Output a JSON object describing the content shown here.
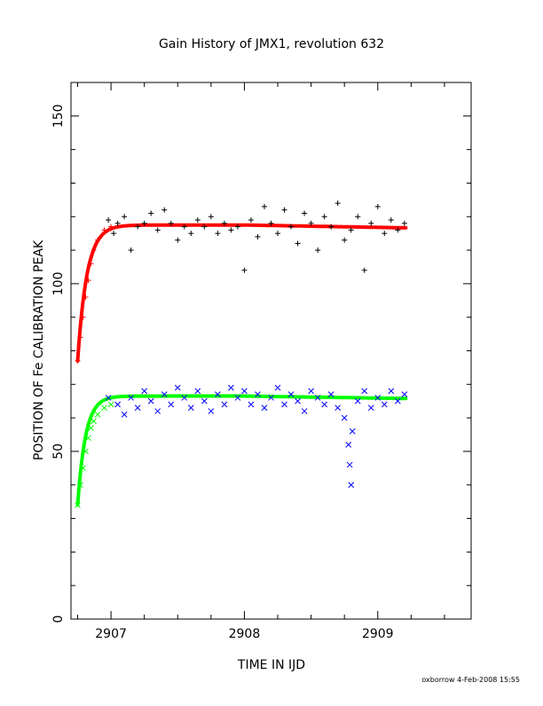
{
  "chart_data": {
    "type": "scatter",
    "title": "Gain History of JMX1, revolution 632",
    "xlabel": "TIME IN IJD",
    "ylabel": "POSITION OF Fe CALIBRATION PEAK",
    "xlim": [
      2906.7,
      2909.7
    ],
    "ylim": [
      0,
      160
    ],
    "x_ticks": [
      2907,
      2908,
      2909
    ],
    "y_ticks": [
      0,
      50,
      100,
      150
    ],
    "x_tick_labels": [
      "2907",
      "2908",
      "2909"
    ],
    "y_tick_labels": [
      "0",
      "50",
      "100",
      "150"
    ],
    "grid": false,
    "series": [
      {
        "marker": "plus",
        "color": "#000000",
        "x": [
          2906.98,
          2907.02,
          2907.05,
          2907.1,
          2907.15,
          2907.2,
          2907.25,
          2907.3,
          2907.35,
          2907.4,
          2907.45,
          2907.5,
          2907.55,
          2907.6,
          2907.65,
          2907.7,
          2907.75,
          2907.8,
          2907.85,
          2907.9,
          2907.95,
          2908.0,
          2908.05,
          2908.1,
          2908.15,
          2908.2,
          2908.25,
          2908.3,
          2908.35,
          2908.4,
          2908.45,
          2908.5,
          2908.55,
          2908.6,
          2908.65,
          2908.7,
          2908.75,
          2908.8,
          2908.85,
          2908.9,
          2908.95,
          2909.0,
          2909.05,
          2909.1,
          2909.15,
          2909.2
        ],
        "y": [
          119,
          115,
          118,
          120,
          110,
          117,
          118,
          121,
          116,
          122,
          118,
          113,
          117,
          115,
          119,
          117,
          120,
          115,
          118,
          116,
          117,
          104,
          119,
          114,
          123,
          118,
          115,
          122,
          117,
          112,
          121,
          118,
          110,
          120,
          117,
          124,
          113,
          116,
          120,
          104,
          118,
          123,
          115,
          119,
          116,
          118
        ]
      },
      {
        "marker": "plus",
        "color": "#ff0000",
        "x": [
          2906.75,
          2906.77,
          2906.79,
          2906.81,
          2906.83,
          2906.85,
          2906.87,
          2906.9,
          2906.95,
          2907.0
        ],
        "y": [
          77,
          84,
          90,
          96,
          101,
          106,
          110,
          113,
          116,
          117
        ]
      },
      {
        "marker": "cross",
        "color": "#0000ff",
        "x": [
          2906.98,
          2907.05,
          2907.1,
          2907.15,
          2907.2,
          2907.25,
          2907.3,
          2907.35,
          2907.4,
          2907.45,
          2907.5,
          2907.55,
          2907.6,
          2907.65,
          2907.7,
          2907.75,
          2907.8,
          2907.85,
          2907.9,
          2907.95,
          2908.0,
          2908.05,
          2908.1,
          2908.15,
          2908.2,
          2908.25,
          2908.3,
          2908.35,
          2908.4,
          2908.45,
          2908.5,
          2908.55,
          2908.6,
          2908.65,
          2908.7,
          2908.75,
          2908.78,
          2908.79,
          2908.8,
          2908.81,
          2908.85,
          2908.9,
          2908.95,
          2909.0,
          2909.05,
          2909.1,
          2909.15,
          2909.2
        ],
        "y": [
          66,
          64,
          61,
          66,
          63,
          68,
          65,
          62,
          67,
          64,
          69,
          66,
          63,
          68,
          65,
          62,
          67,
          64,
          69,
          66,
          68,
          64,
          67,
          63,
          66,
          69,
          64,
          67,
          65,
          62,
          68,
          66,
          64,
          67,
          63,
          60,
          52,
          46,
          40,
          56,
          65,
          68,
          63,
          66,
          64,
          68,
          65,
          67
        ]
      },
      {
        "marker": "cross",
        "color": "#00ff00",
        "x": [
          2906.75,
          2906.77,
          2906.79,
          2906.81,
          2906.83,
          2906.85,
          2906.87,
          2906.9,
          2906.95,
          2907.0
        ],
        "y": [
          34,
          40,
          45,
          50,
          54,
          57,
          59,
          61,
          63,
          64
        ]
      }
    ]
  },
  "footer": {
    "stamp": "oxborrow   4-Feb-2008 15:55"
  }
}
